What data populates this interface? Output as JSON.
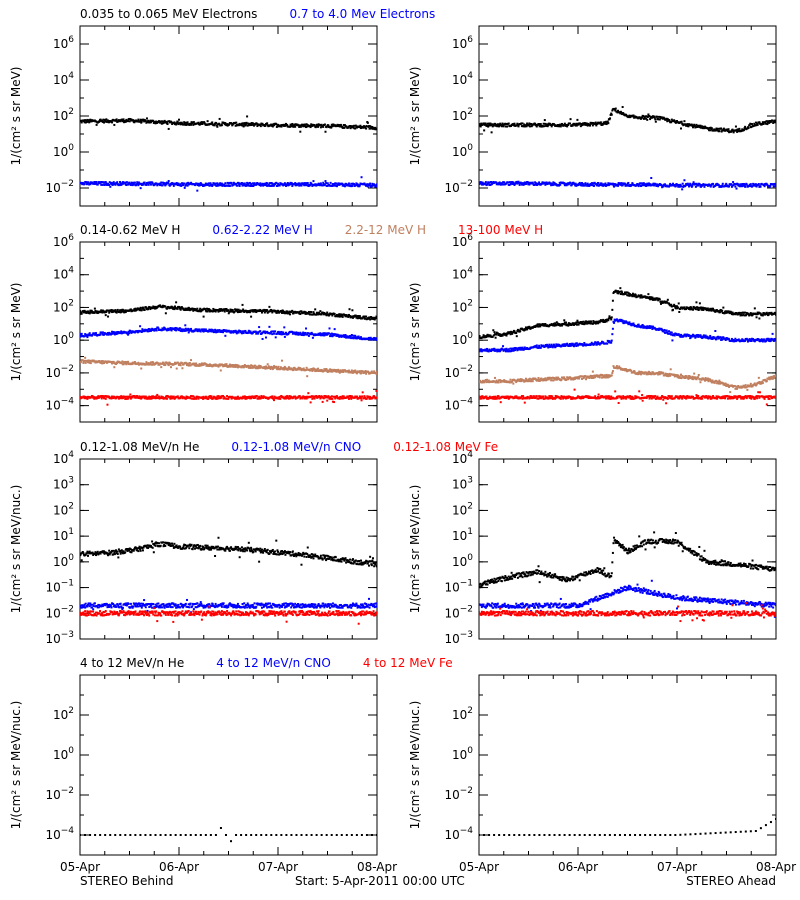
{
  "colors": {
    "black": "#000000",
    "blue": "#0000ff",
    "tan": "#c08060",
    "red": "#ff0000"
  },
  "footer": {
    "left": "STEREO Behind",
    "center": "Start:  5-Apr-2011 00:00 UTC",
    "right": "STEREO Ahead"
  },
  "x_ticks": [
    "05-Apr",
    "06-Apr",
    "07-Apr",
    "08-Apr"
  ],
  "chart_data": [
    {
      "type": "scatter",
      "row": 1,
      "legend": [
        {
          "label": "0.035 to 0.065 MeV Electrons",
          "color": "#000000"
        },
        {
          "label": "0.7 to 4.0 Mev Electrons",
          "color": "#0000ff"
        }
      ],
      "ylabel": "1/(cm² s sr MeV)",
      "y_scale": "log",
      "ylim_exp": [
        -3,
        7
      ],
      "y_tick_exps": [
        -2,
        0,
        2,
        4,
        6
      ],
      "panels": [
        {
          "spacecraft": "STEREO Behind",
          "series": [
            {
              "color": "#000000",
              "x_days": [
                0,
                0.5,
                1,
                1.5,
                2,
                2.5,
                3
              ],
              "log10_flux": [
                1.7,
                1.75,
                1.6,
                1.55,
                1.5,
                1.45,
                1.35
              ]
            },
            {
              "color": "#0000ff",
              "x_days": [
                0,
                0.5,
                1,
                1.5,
                2,
                2.5,
                3
              ],
              "log10_flux": [
                -1.75,
                -1.75,
                -1.8,
                -1.8,
                -1.8,
                -1.8,
                -1.85
              ]
            }
          ]
        },
        {
          "spacecraft": "STEREO Ahead",
          "series": [
            {
              "color": "#000000",
              "x_days": [
                0,
                0.5,
                1,
                1.3,
                1.36,
                1.5,
                1.8,
                2,
                2.3,
                2.6,
                2.8,
                3
              ],
              "log10_flux": [
                1.5,
                1.5,
                1.5,
                1.6,
                2.4,
                1.95,
                1.9,
                1.65,
                1.3,
                1.15,
                1.55,
                1.7
              ]
            },
            {
              "color": "#0000ff",
              "x_days": [
                0,
                0.5,
                1,
                1.5,
                2,
                2.5,
                3
              ],
              "log10_flux": [
                -1.75,
                -1.75,
                -1.8,
                -1.8,
                -1.85,
                -1.85,
                -1.85
              ]
            }
          ]
        }
      ]
    },
    {
      "type": "scatter",
      "row": 2,
      "legend": [
        {
          "label": "0.14-0.62 MeV H",
          "color": "#000000"
        },
        {
          "label": "0.62-2.22 MeV H",
          "color": "#0000ff"
        },
        {
          "label": "2.2-12 MeV H",
          "color": "#c08060"
        },
        {
          "label": "13-100 MeV H",
          "color": "#ff0000"
        }
      ],
      "ylabel": "1/(cm² s sr MeV)",
      "y_scale": "log",
      "ylim_exp": [
        -5,
        6
      ],
      "y_tick_exps": [
        -4,
        -2,
        0,
        2,
        4,
        6
      ],
      "panels": [
        {
          "spacecraft": "STEREO Behind",
          "series": [
            {
              "color": "#000000",
              "x_days": [
                0,
                0.5,
                0.8,
                1.2,
                1.6,
                2,
                2.5,
                3
              ],
              "log10_flux": [
                1.7,
                1.8,
                2.05,
                1.85,
                1.8,
                1.75,
                1.6,
                1.3
              ]
            },
            {
              "color": "#0000ff",
              "x_days": [
                0,
                0.5,
                0.8,
                1.2,
                1.6,
                2,
                2.5,
                3
              ],
              "log10_flux": [
                0.3,
                0.5,
                0.7,
                0.6,
                0.5,
                0.45,
                0.35,
                0.05
              ]
            },
            {
              "color": "#c08060",
              "x_days": [
                0,
                0.5,
                1,
                1.5,
                2,
                2.5,
                3
              ],
              "log10_flux": [
                -1.3,
                -1.4,
                -1.45,
                -1.55,
                -1.7,
                -1.85,
                -2.0
              ]
            },
            {
              "color": "#ff0000",
              "x_days": [
                0,
                1,
                2,
                3
              ],
              "log10_flux": [
                -3.5,
                -3.5,
                -3.5,
                -3.5
              ]
            }
          ]
        },
        {
          "spacecraft": "STEREO Ahead",
          "series": [
            {
              "color": "#000000",
              "x_days": [
                0,
                0.3,
                0.6,
                0.9,
                1.2,
                1.34,
                1.36,
                1.6,
                1.8,
                2,
                2.3,
                2.6,
                3
              ],
              "log10_flux": [
                0.2,
                0.4,
                0.9,
                1.0,
                1.1,
                1.3,
                3.0,
                2.7,
                2.5,
                2.0,
                1.9,
                1.6,
                1.6
              ]
            },
            {
              "color": "#0000ff",
              "x_days": [
                0,
                0.3,
                0.6,
                0.9,
                1.2,
                1.34,
                1.36,
                1.6,
                1.8,
                2,
                2.3,
                2.6,
                3
              ],
              "log10_flux": [
                -0.6,
                -0.6,
                -0.4,
                -0.3,
                -0.2,
                -0.1,
                1.3,
                0.9,
                0.7,
                0.3,
                0.2,
                0.0,
                0.0
              ]
            },
            {
              "color": "#c08060",
              "x_days": [
                0,
                0.3,
                0.6,
                0.9,
                1.2,
                1.34,
                1.36,
                1.6,
                1.8,
                2,
                2.3,
                2.6,
                2.8,
                3
              ],
              "log10_flux": [
                -2.5,
                -2.5,
                -2.4,
                -2.35,
                -2.2,
                -2.2,
                -1.6,
                -2.0,
                -2.0,
                -2.2,
                -2.4,
                -2.9,
                -2.7,
                -2.2
              ]
            },
            {
              "color": "#ff0000",
              "x_days": [
                0,
                1,
                2,
                3
              ],
              "log10_flux": [
                -3.5,
                -3.5,
                -3.5,
                -3.5
              ]
            }
          ]
        }
      ]
    },
    {
      "type": "scatter",
      "row": 3,
      "legend": [
        {
          "label": "0.12-1.08 MeV/n He",
          "color": "#000000"
        },
        {
          "label": "0.12-1.08 MeV/n CNO",
          "color": "#0000ff"
        },
        {
          "label": "0.12-1.08 MeV Fe",
          "color": "#ff0000"
        }
      ],
      "ylabel": "1/(cm² s sr MeV/nuc.)",
      "y_scale": "log",
      "ylim_exp": [
        -3,
        4
      ],
      "y_tick_exps": [
        -3,
        -2,
        -1,
        0,
        1,
        2,
        3,
        4
      ],
      "panels": [
        {
          "spacecraft": "STEREO Behind",
          "series": [
            {
              "color": "#000000",
              "x_days": [
                0,
                0.3,
                0.6,
                0.8,
                1.0,
                1.3,
                1.6,
                1.9,
                2.2,
                2.5,
                2.8,
                3
              ],
              "log10_flux": [
                0.3,
                0.35,
                0.5,
                0.7,
                0.6,
                0.55,
                0.5,
                0.4,
                0.3,
                0.15,
                0.0,
                -0.1
              ]
            },
            {
              "color": "#0000ff",
              "x_days": [
                0,
                1,
                2,
                3
              ],
              "log10_flux": [
                -1.7,
                -1.7,
                -1.7,
                -1.7
              ]
            },
            {
              "color": "#ff0000",
              "x_days": [
                0,
                1,
                2,
                3
              ],
              "log10_flux": [
                -2.0,
                -2.0,
                -2.0,
                -2.0
              ]
            }
          ]
        },
        {
          "spacecraft": "STEREO Ahead",
          "series": [
            {
              "color": "#000000",
              "x_days": [
                0,
                0.3,
                0.6,
                0.9,
                1.2,
                1.34,
                1.36,
                1.5,
                1.7,
                2.0,
                2.3,
                2.6,
                3
              ],
              "log10_flux": [
                -0.9,
                -0.6,
                -0.4,
                -0.7,
                -0.3,
                -0.6,
                0.9,
                0.4,
                0.8,
                0.8,
                0.0,
                -0.1,
                -0.3
              ]
            },
            {
              "color": "#0000ff",
              "x_days": [
                0,
                1,
                1.5,
                2,
                3
              ],
              "log10_flux": [
                -1.7,
                -1.7,
                -1.0,
                -1.4,
                -1.7
              ]
            },
            {
              "color": "#ff0000",
              "x_days": [
                0,
                1,
                2,
                3
              ],
              "log10_flux": [
                -2.0,
                -2.0,
                -2.0,
                -2.0
              ]
            }
          ]
        }
      ]
    },
    {
      "type": "scatter",
      "row": 4,
      "legend": [
        {
          "label": "4 to 12 MeV/n He",
          "color": "#000000"
        },
        {
          "label": "4 to 12 MeV/n CNO",
          "color": "#0000ff"
        },
        {
          "label": "4 to 12 MeV Fe",
          "color": "#ff0000"
        }
      ],
      "ylabel": "1/(cm² s sr MeV/nuc.)",
      "y_scale": "log",
      "ylim_exp": [
        -5,
        4
      ],
      "y_tick_exps": [
        -4,
        -2,
        0,
        2
      ],
      "panels": [
        {
          "spacecraft": "STEREO Behind",
          "series": [
            {
              "color": "#000000",
              "x_days": [
                0,
                1,
                2,
                3
              ],
              "log10_flux": [
                -4.0,
                -4.0,
                -4.0,
                -4.0
              ]
            }
          ]
        },
        {
          "spacecraft": "STEREO Ahead",
          "series": [
            {
              "color": "#000000",
              "x_days": [
                0,
                1,
                2,
                2.8,
                3
              ],
              "log10_flux": [
                -4.0,
                -4.0,
                -4.0,
                -3.8,
                -3.2
              ]
            }
          ]
        }
      ]
    }
  ]
}
